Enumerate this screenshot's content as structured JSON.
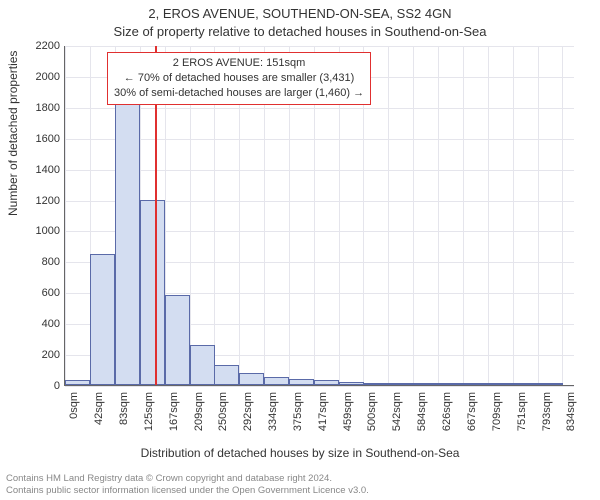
{
  "title_main": "2, EROS AVENUE, SOUTHEND-ON-SEA, SS2 4GN",
  "title_sub": "Size of property relative to detached houses in Southend-on-Sea",
  "ylabel": "Number of detached properties",
  "xlabel": "Distribution of detached houses by size in Southend-on-Sea",
  "chart": {
    "type": "histogram",
    "ylim": [
      0,
      2200
    ],
    "yticks": [
      0,
      200,
      400,
      600,
      800,
      1000,
      1200,
      1400,
      1600,
      1800,
      2000,
      2200
    ],
    "xlim": [
      0,
      855
    ],
    "xticks": [
      0,
      42,
      83,
      125,
      167,
      209,
      250,
      292,
      334,
      375,
      417,
      459,
      500,
      542,
      584,
      626,
      667,
      709,
      751,
      793,
      834
    ],
    "xtick_suffix": "sqm",
    "bars": {
      "x": [
        0,
        42,
        83,
        125,
        167,
        209,
        250,
        292,
        334,
        375,
        417,
        459,
        500,
        542,
        584,
        626,
        667,
        709,
        751,
        793
      ],
      "width": 42,
      "values": [
        30,
        850,
        1870,
        1200,
        580,
        260,
        130,
        80,
        55,
        40,
        30,
        20,
        15,
        10,
        8,
        6,
        4,
        3,
        2,
        1
      ]
    },
    "bar_fill": "#d3ddf1",
    "bar_stroke": "#5a6aa8",
    "grid_color": "#e5e5ec",
    "marker": {
      "x": 151,
      "color": "#e03030"
    },
    "callout": {
      "border_color": "#e03030",
      "lines": [
        "2 EROS AVENUE: 151sqm",
        "← 70% of detached houses are smaller (3,431)",
        "30% of semi-detached houses are larger (1,460) →"
      ]
    }
  },
  "footer_lines": [
    "Contains HM Land Registry data © Crown copyright and database right 2024.",
    "Contains public sector information licensed under the Open Government Licence v3.0."
  ]
}
